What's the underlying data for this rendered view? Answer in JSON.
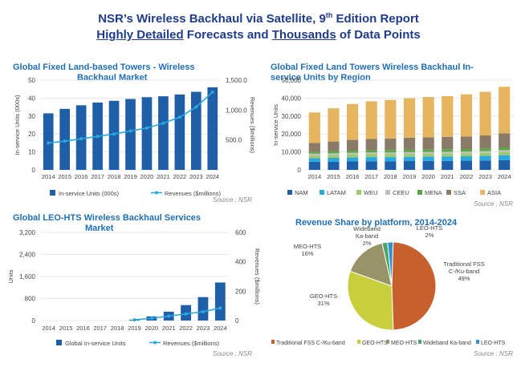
{
  "header": {
    "title_pre": "NSR’s Wireless Backhaul via Satellite, 9",
    "title_sup": "th",
    "title_post": " Edition Report",
    "sub_a": "Highly Detailed",
    "sub_b": " Forecasts and ",
    "sub_c": "Thousands",
    "sub_d": " of Data Points"
  },
  "source": "Source : NSR",
  "chart_data": [
    {
      "id": "towers",
      "type": "bar",
      "title": "Global Fixed Land-based Towers - Wireless Backhaul Market",
      "title_line1": "Global Fixed Land-based Towers - Wireless",
      "title_line2": "Backhaul Market",
      "categories": [
        "2014",
        "2015",
        "2016",
        "2017",
        "2018",
        "2019",
        "2020",
        "2021",
        "2022",
        "2023",
        "2024"
      ],
      "ylabel": "In-service Units (000s)",
      "y2label": "Revenues ($millions)",
      "ylim": [
        0,
        50
      ],
      "yticks": [
        "0",
        "10",
        "20",
        "30",
        "40",
        "50"
      ],
      "y2lim": [
        0,
        1500
      ],
      "y2ticks": [
        "500.0",
        "1,000.0",
        "1,500.0"
      ],
      "series": [
        {
          "name": "In-service Units (000s)",
          "type": "bar",
          "color": "#1f5fa8",
          "values": [
            31.5,
            34,
            36,
            37.5,
            38.5,
            39.5,
            40.5,
            41,
            42,
            43.5,
            46
          ]
        },
        {
          "name": "Revenues ($millions)",
          "type": "line",
          "axis": "right",
          "color": "#29a9e0",
          "values": [
            450,
            480,
            520,
            560,
            600,
            650,
            700,
            780,
            880,
            1050,
            1300
          ]
        }
      ],
      "legend_position": "bottom"
    },
    {
      "id": "regions",
      "type": "bar",
      "stacked": true,
      "title": "Global Fixed Land Towers Wireless Backhaul In-service Units by Region",
      "title_line1": "Global Fixed Land Towers Wireless Backhaul In-",
      "title_line2": "service Units by Region",
      "categories": [
        "2014",
        "2015",
        "2016",
        "2017",
        "2018",
        "2019",
        "2020",
        "2021",
        "2022",
        "2023",
        "2024"
      ],
      "ylabel": "In-service Units",
      "ylim": [
        0,
        50000
      ],
      "yticks": [
        "0",
        "10,000",
        "20,000",
        "30,000",
        "40,000",
        "50,000"
      ],
      "series": [
        {
          "name": "NAM",
          "color": "#1f5fa8",
          "values": [
            4500,
            4600,
            4700,
            4800,
            4800,
            4900,
            5000,
            5000,
            5100,
            5200,
            5400
          ]
        },
        {
          "name": "LATAM",
          "color": "#29a9e0",
          "values": [
            2000,
            2100,
            2200,
            2300,
            2300,
            2400,
            2400,
            2500,
            2500,
            2600,
            2800
          ]
        },
        {
          "name": "WEU",
          "color": "#9fc96a",
          "values": [
            1500,
            1500,
            1600,
            1600,
            1600,
            1600,
            1600,
            1600,
            1600,
            1700,
            1700
          ]
        },
        {
          "name": "CEEU",
          "color": "#bfbfbf",
          "values": [
            1000,
            1000,
            1000,
            1000,
            1000,
            1000,
            1000,
            1000,
            1000,
            1000,
            1100
          ]
        },
        {
          "name": "MENA",
          "color": "#57a845",
          "values": [
            1000,
            1100,
            1200,
            1200,
            1300,
            1300,
            1300,
            1400,
            1400,
            1400,
            1500
          ]
        },
        {
          "name": "SSA",
          "color": "#8a7b68",
          "values": [
            5000,
            5500,
            6000,
            6300,
            6500,
            6700,
            6800,
            6900,
            7000,
            7300,
            7800
          ]
        },
        {
          "name": "ASIA",
          "color": "#e5b560",
          "values": [
            17000,
            18500,
            20000,
            21000,
            21500,
            22000,
            22500,
            22700,
            23500,
            24300,
            26000
          ]
        }
      ],
      "legend_position": "bottom"
    },
    {
      "id": "leo",
      "type": "bar",
      "title": "Global LEO-HTS Wireless Backhaul Services Market",
      "title_line1": "Global LEO-HTS Wireless Backhaul Services",
      "title_line2": "Market",
      "categories": [
        "2014",
        "2015",
        "2016",
        "2017",
        "2018",
        "2019",
        "2020",
        "2021",
        "2022",
        "2023",
        "2024"
      ],
      "ylabel": "Units",
      "y2label": "Revenues ($millions)",
      "ylim": [
        0,
        3200
      ],
      "yticks": [
        "0",
        "800",
        "1,600",
        "2,400",
        "3,200"
      ],
      "y2lim": [
        0,
        600
      ],
      "y2ticks": [
        "0",
        "200",
        "400",
        "600"
      ],
      "series": [
        {
          "name": "Global In-service Units",
          "type": "bar",
          "color": "#1f5fa8",
          "values": [
            0,
            0,
            0,
            0,
            0,
            30,
            150,
            320,
            560,
            850,
            1380
          ]
        },
        {
          "name": "Revenues ($millions)",
          "type": "line",
          "axis": "right",
          "color": "#29a9e0",
          "values": [
            null,
            null,
            null,
            null,
            null,
            5,
            15,
            30,
            45,
            60,
            85
          ]
        }
      ],
      "legend_position": "bottom"
    },
    {
      "id": "share",
      "type": "pie",
      "title": "Revenue Share by platform, 2014-2024",
      "slices": [
        {
          "name": "Traditional FSS C-/Ku-band",
          "value": 49,
          "color": "#c8602e",
          "label_line1": "Traditional FSS",
          "label_line2": "C-/Ku-band",
          "label_line3": "49%"
        },
        {
          "name": "GEO-HTS",
          "value": 31,
          "color": "#c9cf3c",
          "label_line1": "GEO-HTS",
          "label_line2": "31%"
        },
        {
          "name": "MEO-HTS",
          "value": 16,
          "color": "#999468",
          "label_line1": "MEO-HTS",
          "label_line2": "16%"
        },
        {
          "name": "Wideband Ka-band",
          "value": 2,
          "color": "#4aa56a",
          "label_line1": "Wideband",
          "label_line2": "Ka-band",
          "label_line3": "2%"
        },
        {
          "name": "LEO-HTS",
          "value": 2,
          "color": "#2f8fd0",
          "label_line1": "LEO-HTS",
          "label_line2": "2%"
        }
      ],
      "legend_position": "bottom"
    }
  ]
}
